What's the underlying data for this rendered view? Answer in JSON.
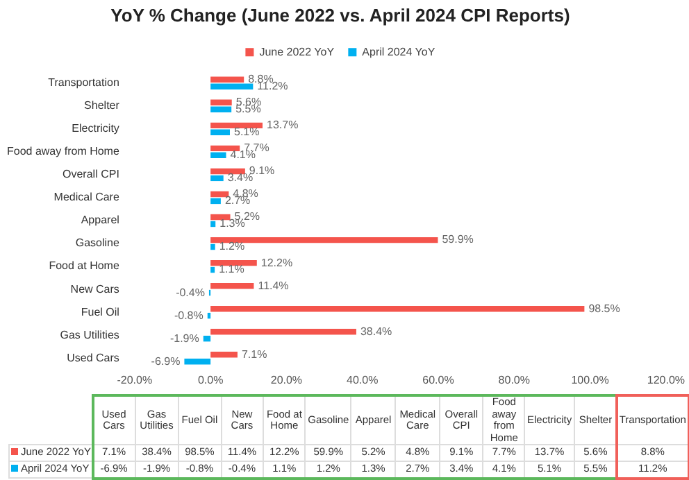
{
  "chart_data": {
    "type": "bar",
    "orientation": "horizontal",
    "title": "YoY % Change (June 2022 vs. April 2024 CPI Reports)",
    "categories": [
      "Transportation",
      "Shelter",
      "Electricity",
      "Food away from Home",
      "Overall CPI",
      "Medical Care",
      "Apparel",
      "Gasoline",
      "Food at Home",
      "New Cars",
      "Fuel Oil",
      "Gas Utilities",
      "Used Cars"
    ],
    "series": [
      {
        "name": "June 2022 YoY",
        "color": "#f4544c",
        "values": [
          8.8,
          5.6,
          13.7,
          7.7,
          9.1,
          4.8,
          5.2,
          59.9,
          12.2,
          11.4,
          98.5,
          38.4,
          7.1
        ],
        "value_labels": [
          "8.8%",
          "5.6%",
          "13.7%",
          "7.7%",
          "9.1%",
          "4.8%",
          "5.2%",
          "59.9%",
          "12.2%",
          "11.4%",
          "98.5%",
          "38.4%",
          "7.1%"
        ]
      },
      {
        "name": "April 2024 YoY",
        "color": "#00b0f0",
        "values": [
          11.2,
          5.5,
          5.1,
          4.1,
          3.4,
          2.7,
          1.3,
          1.2,
          1.1,
          -0.4,
          -0.8,
          -1.9,
          -6.9
        ],
        "value_labels": [
          "11.2%",
          "5.5%",
          "5.1%",
          "4.1%",
          "3.4%",
          "2.7%",
          "1.3%",
          "1.2%",
          "1.1%",
          "-0.4%",
          "-0.8%",
          "-1.9%",
          "-6.9%"
        ]
      }
    ],
    "xlim": [
      -20,
      120
    ],
    "xticks": [
      {
        "value": -20,
        "label": "-20.0%"
      },
      {
        "value": 0,
        "label": "0.0%"
      },
      {
        "value": 20,
        "label": "20.0%"
      },
      {
        "value": 40,
        "label": "40.0%"
      },
      {
        "value": 60,
        "label": "60.0%"
      },
      {
        "value": 80,
        "label": "80.0%"
      },
      {
        "value": 100,
        "label": "100.0%"
      },
      {
        "value": 120,
        "label": "120.0%"
      }
    ],
    "legend": "top",
    "grid": false
  }
}
